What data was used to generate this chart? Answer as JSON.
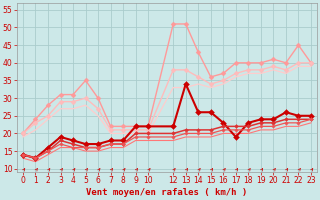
{
  "background_color": "#cce8e8",
  "grid_color": "#aacccc",
  "xlabel": "Vent moyen/en rafales ( km/h )",
  "xlim": [
    -0.5,
    23.5
  ],
  "ylim": [
    9,
    57
  ],
  "yticks": [
    10,
    15,
    20,
    25,
    30,
    35,
    40,
    45,
    50,
    55
  ],
  "xticks": [
    0,
    1,
    2,
    3,
    4,
    5,
    6,
    7,
    8,
    9,
    10,
    12,
    13,
    14,
    15,
    16,
    17,
    18,
    19,
    20,
    21,
    22,
    23
  ],
  "series": [
    {
      "x": [
        0,
        1,
        2,
        3,
        4,
        5,
        6,
        7,
        8,
        9,
        10,
        12,
        13,
        14,
        15,
        16,
        17,
        18,
        19,
        20,
        21,
        22,
        23
      ],
      "y": [
        20,
        24,
        28,
        31,
        31,
        35,
        30,
        22,
        22,
        22,
        22,
        51,
        51,
        43,
        36,
        37,
        40,
        40,
        40,
        41,
        40,
        45,
        40
      ],
      "color": "#ff9999",
      "linewidth": 1.0,
      "marker": "D",
      "markersize": 2.5
    },
    {
      "x": [
        0,
        1,
        2,
        3,
        4,
        5,
        6,
        7,
        8,
        9,
        10,
        12,
        13,
        14,
        15,
        16,
        17,
        18,
        19,
        20,
        21,
        22,
        23
      ],
      "y": [
        20,
        23,
        25,
        29,
        29,
        30,
        27,
        21,
        21,
        21,
        21,
        38,
        38,
        36,
        34,
        35,
        37,
        38,
        38,
        39,
        38,
        40,
        40
      ],
      "color": "#ffbbbb",
      "linewidth": 1.0,
      "marker": "D",
      "markersize": 2.5
    },
    {
      "x": [
        0,
        1,
        2,
        3,
        4,
        5,
        6,
        7,
        8,
        9,
        10,
        12,
        13,
        14,
        15,
        16,
        17,
        18,
        19,
        20,
        21,
        22,
        23
      ],
      "y": [
        19,
        21,
        24,
        27,
        27,
        28,
        25,
        20,
        20,
        20,
        20,
        33,
        33,
        34,
        33,
        34,
        36,
        37,
        37,
        38,
        37,
        39,
        39
      ],
      "color": "#ffcccc",
      "linewidth": 0.9,
      "marker": null,
      "markersize": 0
    },
    {
      "x": [
        0,
        1,
        2,
        3,
        4,
        5,
        6,
        7,
        8,
        9,
        10,
        12,
        13,
        14,
        15,
        16,
        17,
        18,
        19,
        20,
        21,
        22,
        23
      ],
      "y": [
        14,
        13,
        16,
        19,
        18,
        17,
        17,
        18,
        18,
        22,
        22,
        22,
        34,
        26,
        26,
        23,
        19,
        23,
        24,
        24,
        26,
        25,
        25
      ],
      "color": "#cc0000",
      "linewidth": 1.5,
      "marker": "D",
      "markersize": 3
    },
    {
      "x": [
        0,
        1,
        2,
        3,
        4,
        5,
        6,
        7,
        8,
        9,
        10,
        12,
        13,
        14,
        15,
        16,
        17,
        18,
        19,
        20,
        21,
        22,
        23
      ],
      "y": [
        14,
        13,
        15,
        18,
        17,
        16,
        16,
        17,
        17,
        20,
        20,
        20,
        21,
        21,
        21,
        22,
        22,
        22,
        23,
        23,
        24,
        24,
        24
      ],
      "color": "#dd3333",
      "linewidth": 1.1,
      "marker": "D",
      "markersize": 2
    },
    {
      "x": [
        0,
        1,
        2,
        3,
        4,
        5,
        6,
        7,
        8,
        9,
        10,
        12,
        13,
        14,
        15,
        16,
        17,
        18,
        19,
        20,
        21,
        22,
        23
      ],
      "y": [
        14,
        13,
        15,
        17,
        16,
        16,
        16,
        17,
        17,
        19,
        19,
        19,
        20,
        20,
        20,
        21,
        21,
        21,
        22,
        22,
        23,
        23,
        24
      ],
      "color": "#ee5555",
      "linewidth": 0.9,
      "marker": "D",
      "markersize": 1.8
    },
    {
      "x": [
        0,
        1,
        2,
        3,
        4,
        5,
        6,
        7,
        8,
        9,
        10,
        12,
        13,
        14,
        15,
        16,
        17,
        18,
        19,
        20,
        21,
        22,
        23
      ],
      "y": [
        13,
        12,
        14,
        16,
        16,
        15,
        15,
        16,
        16,
        18,
        18,
        18,
        19,
        19,
        19,
        20,
        20,
        20,
        21,
        21,
        22,
        22,
        23
      ],
      "color": "#ff7777",
      "linewidth": 0.8,
      "marker": null,
      "markersize": 0
    }
  ],
  "tick_fontsize": 5.5,
  "label_fontsize": 6.5,
  "tick_color": "#cc0000",
  "label_color": "#cc0000"
}
